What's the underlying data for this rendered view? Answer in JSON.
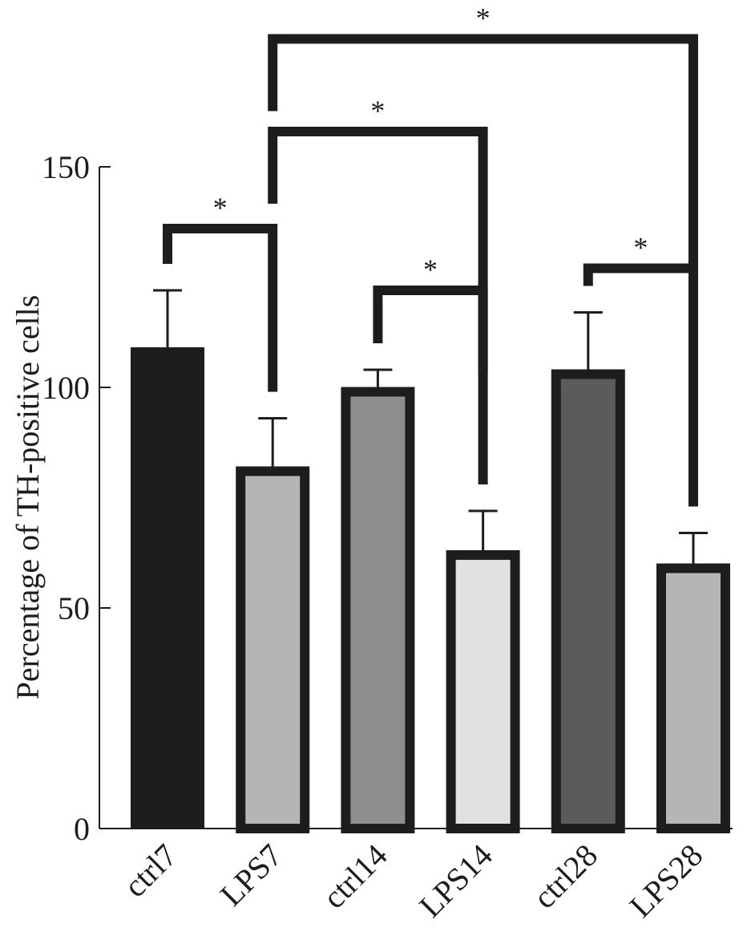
{
  "chart_data": {
    "type": "bar",
    "categories": [
      "ctrl7",
      "LPS7",
      "ctrl14",
      "LPS14",
      "ctrl28",
      "LPS28"
    ],
    "values": [
      108,
      81,
      99,
      62,
      103,
      59
    ],
    "errors": [
      14,
      12,
      5,
      10,
      14,
      8
    ],
    "colors": [
      "#1d1d1b",
      "#b4b5b7",
      "#8d8e90",
      "#e0e1e3",
      "#5a5b5d",
      "#b4b5b7"
    ],
    "ylabel": "Percentage of TH-positive cells",
    "ylim": [
      0,
      150
    ],
    "yticks": [
      0,
      50,
      100,
      150
    ],
    "grid": false,
    "significance": [
      {
        "from": "ctrl7",
        "to": "LPS7",
        "label": "*",
        "level": 136
      },
      {
        "from": "LPS7",
        "to": "LPS14",
        "label": "*",
        "level": 158
      },
      {
        "from": "LPS7",
        "to": "LPS28",
        "label": "*",
        "level": 179
      },
      {
        "from": "ctrl14",
        "to": "LPS14",
        "label": "*",
        "level": 122
      },
      {
        "from": "ctrl28",
        "to": "LPS28",
        "label": "*",
        "level": 127
      }
    ]
  }
}
